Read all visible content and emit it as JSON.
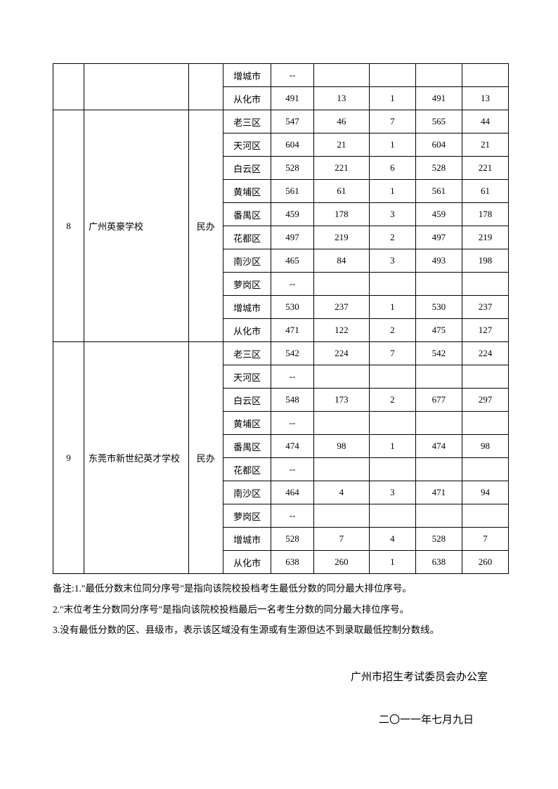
{
  "table": {
    "top_rows": [
      {
        "district": "增城市",
        "v1": "--",
        "v2": "",
        "v3": "",
        "v4": "",
        "v5": ""
      },
      {
        "district": "从化市",
        "v1": "491",
        "v2": "13",
        "v3": "1",
        "v4": "491",
        "v5": "13"
      }
    ],
    "groups": [
      {
        "num": "8",
        "school": "广州英豪学校",
        "type": "民办",
        "rows": [
          {
            "district": "老三区",
            "v1": "547",
            "v2": "46",
            "v3": "7",
            "v4": "565",
            "v5": "44"
          },
          {
            "district": "天河区",
            "v1": "604",
            "v2": "21",
            "v3": "1",
            "v4": "604",
            "v5": "21"
          },
          {
            "district": "白云区",
            "v1": "528",
            "v2": "221",
            "v3": "6",
            "v4": "528",
            "v5": "221"
          },
          {
            "district": "黄埔区",
            "v1": "561",
            "v2": "61",
            "v3": "1",
            "v4": "561",
            "v5": "61"
          },
          {
            "district": "番禺区",
            "v1": "459",
            "v2": "178",
            "v3": "3",
            "v4": "459",
            "v5": "178"
          },
          {
            "district": "花都区",
            "v1": "497",
            "v2": "219",
            "v3": "2",
            "v4": "497",
            "v5": "219"
          },
          {
            "district": "南沙区",
            "v1": "465",
            "v2": "84",
            "v3": "3",
            "v4": "493",
            "v5": "198"
          },
          {
            "district": "萝岗区",
            "v1": "--",
            "v2": "",
            "v3": "",
            "v4": "",
            "v5": ""
          },
          {
            "district": "增城市",
            "v1": "530",
            "v2": "237",
            "v3": "1",
            "v4": "530",
            "v5": "237"
          },
          {
            "district": "从化市",
            "v1": "471",
            "v2": "122",
            "v3": "2",
            "v4": "475",
            "v5": "127"
          }
        ]
      },
      {
        "num": "9",
        "school": "东莞市新世纪英才学校",
        "type": "民办",
        "rows": [
          {
            "district": "老三区",
            "v1": "542",
            "v2": "224",
            "v3": "7",
            "v4": "542",
            "v5": "224"
          },
          {
            "district": "天河区",
            "v1": "--",
            "v2": "",
            "v3": "",
            "v4": "",
            "v5": ""
          },
          {
            "district": "白云区",
            "v1": "548",
            "v2": "173",
            "v3": "2",
            "v4": "677",
            "v5": "297"
          },
          {
            "district": "黄埔区",
            "v1": "--",
            "v2": "",
            "v3": "",
            "v4": "",
            "v5": ""
          },
          {
            "district": "番禺区",
            "v1": "474",
            "v2": "98",
            "v3": "1",
            "v4": "474",
            "v5": "98"
          },
          {
            "district": "花都区",
            "v1": "--",
            "v2": "",
            "v3": "",
            "v4": "",
            "v5": ""
          },
          {
            "district": "南沙区",
            "v1": "464",
            "v2": "4",
            "v3": "3",
            "v4": "471",
            "v5": "94"
          },
          {
            "district": "萝岗区",
            "v1": "--",
            "v2": "",
            "v3": "",
            "v4": "",
            "v5": ""
          },
          {
            "district": "增城市",
            "v1": "528",
            "v2": "7",
            "v3": "4",
            "v4": "528",
            "v5": "7"
          },
          {
            "district": "从化市",
            "v1": "638",
            "v2": "260",
            "v3": "1",
            "v4": "638",
            "v5": "260"
          }
        ]
      }
    ]
  },
  "notes": {
    "line1": "备注:1.\"最低分数末位同分序号\"是指向该院校投档考生最低分数的同分最大排位序号。",
    "line2": "2.\"末位考生分数同分序号\"是指向该院校投档最后一名考生分数的同分最大排位序号。",
    "line3": "3.没有最低分数的区、县级市，表示该区域没有生源或有生源但达不到录取最低控制分数线。"
  },
  "footer": {
    "org": "广州市招生考试委员会办公室",
    "date": "二〇一一年七月九日"
  }
}
